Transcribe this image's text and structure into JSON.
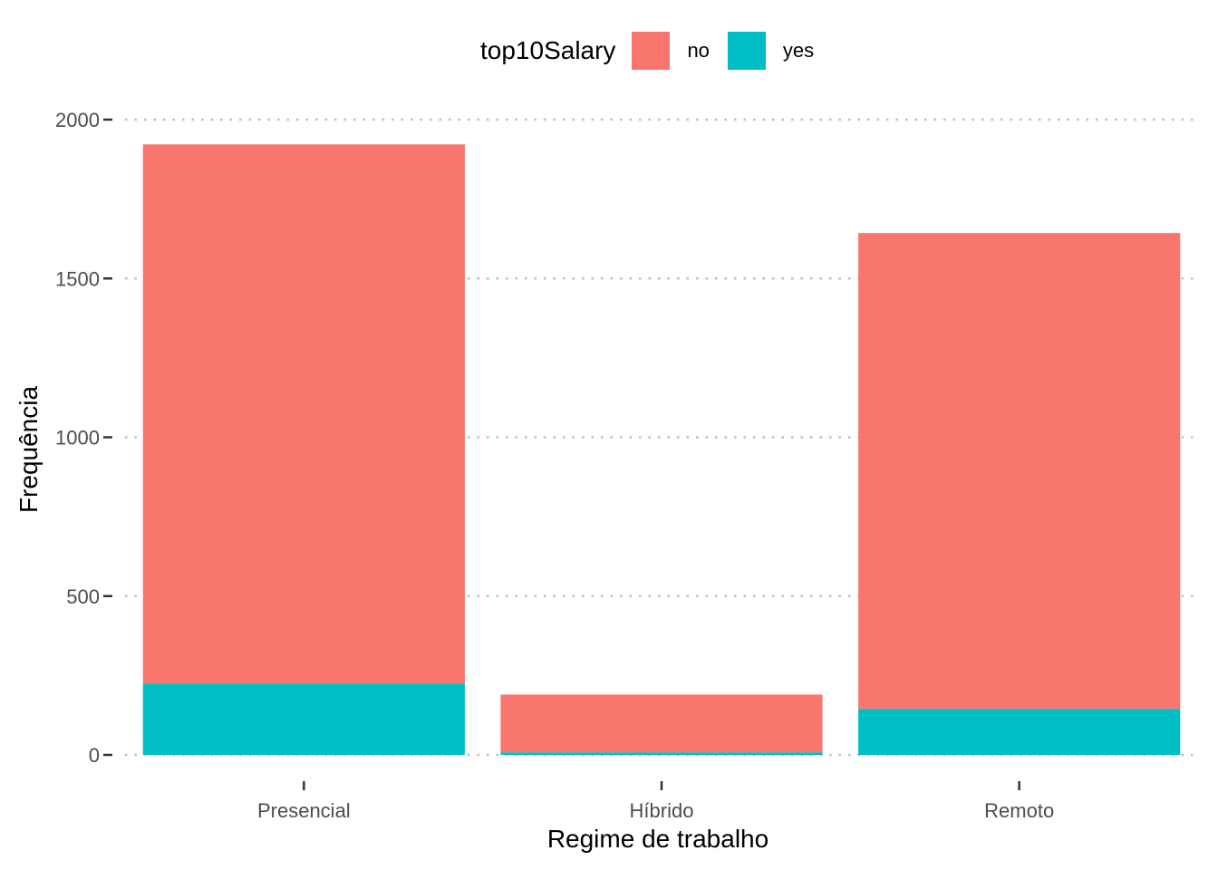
{
  "chart_data": {
    "type": "bar",
    "stacked": true,
    "xlabel": "Regime de trabalho",
    "ylabel": "Frequência",
    "categories": [
      "Presencial",
      "Híbrido",
      "Remoto"
    ],
    "series": [
      {
        "name": "yes",
        "values": [
          225,
          8,
          145
        ]
      },
      {
        "name": "no",
        "values": [
          1697,
          182,
          1498
        ]
      }
    ],
    "ylim": [
      0,
      2000
    ],
    "yticks": [
      0,
      500,
      1000,
      1500,
      2000
    ],
    "grid": "horizontal dotted major lines",
    "legend": {
      "title": "top10Salary",
      "position": "top",
      "entries": [
        "no",
        "yes"
      ]
    },
    "colors": {
      "no": "#F8766D",
      "yes": "#00BFC4",
      "grid": "#BEBEBE",
      "tick_text": "#4D4D4D"
    }
  }
}
